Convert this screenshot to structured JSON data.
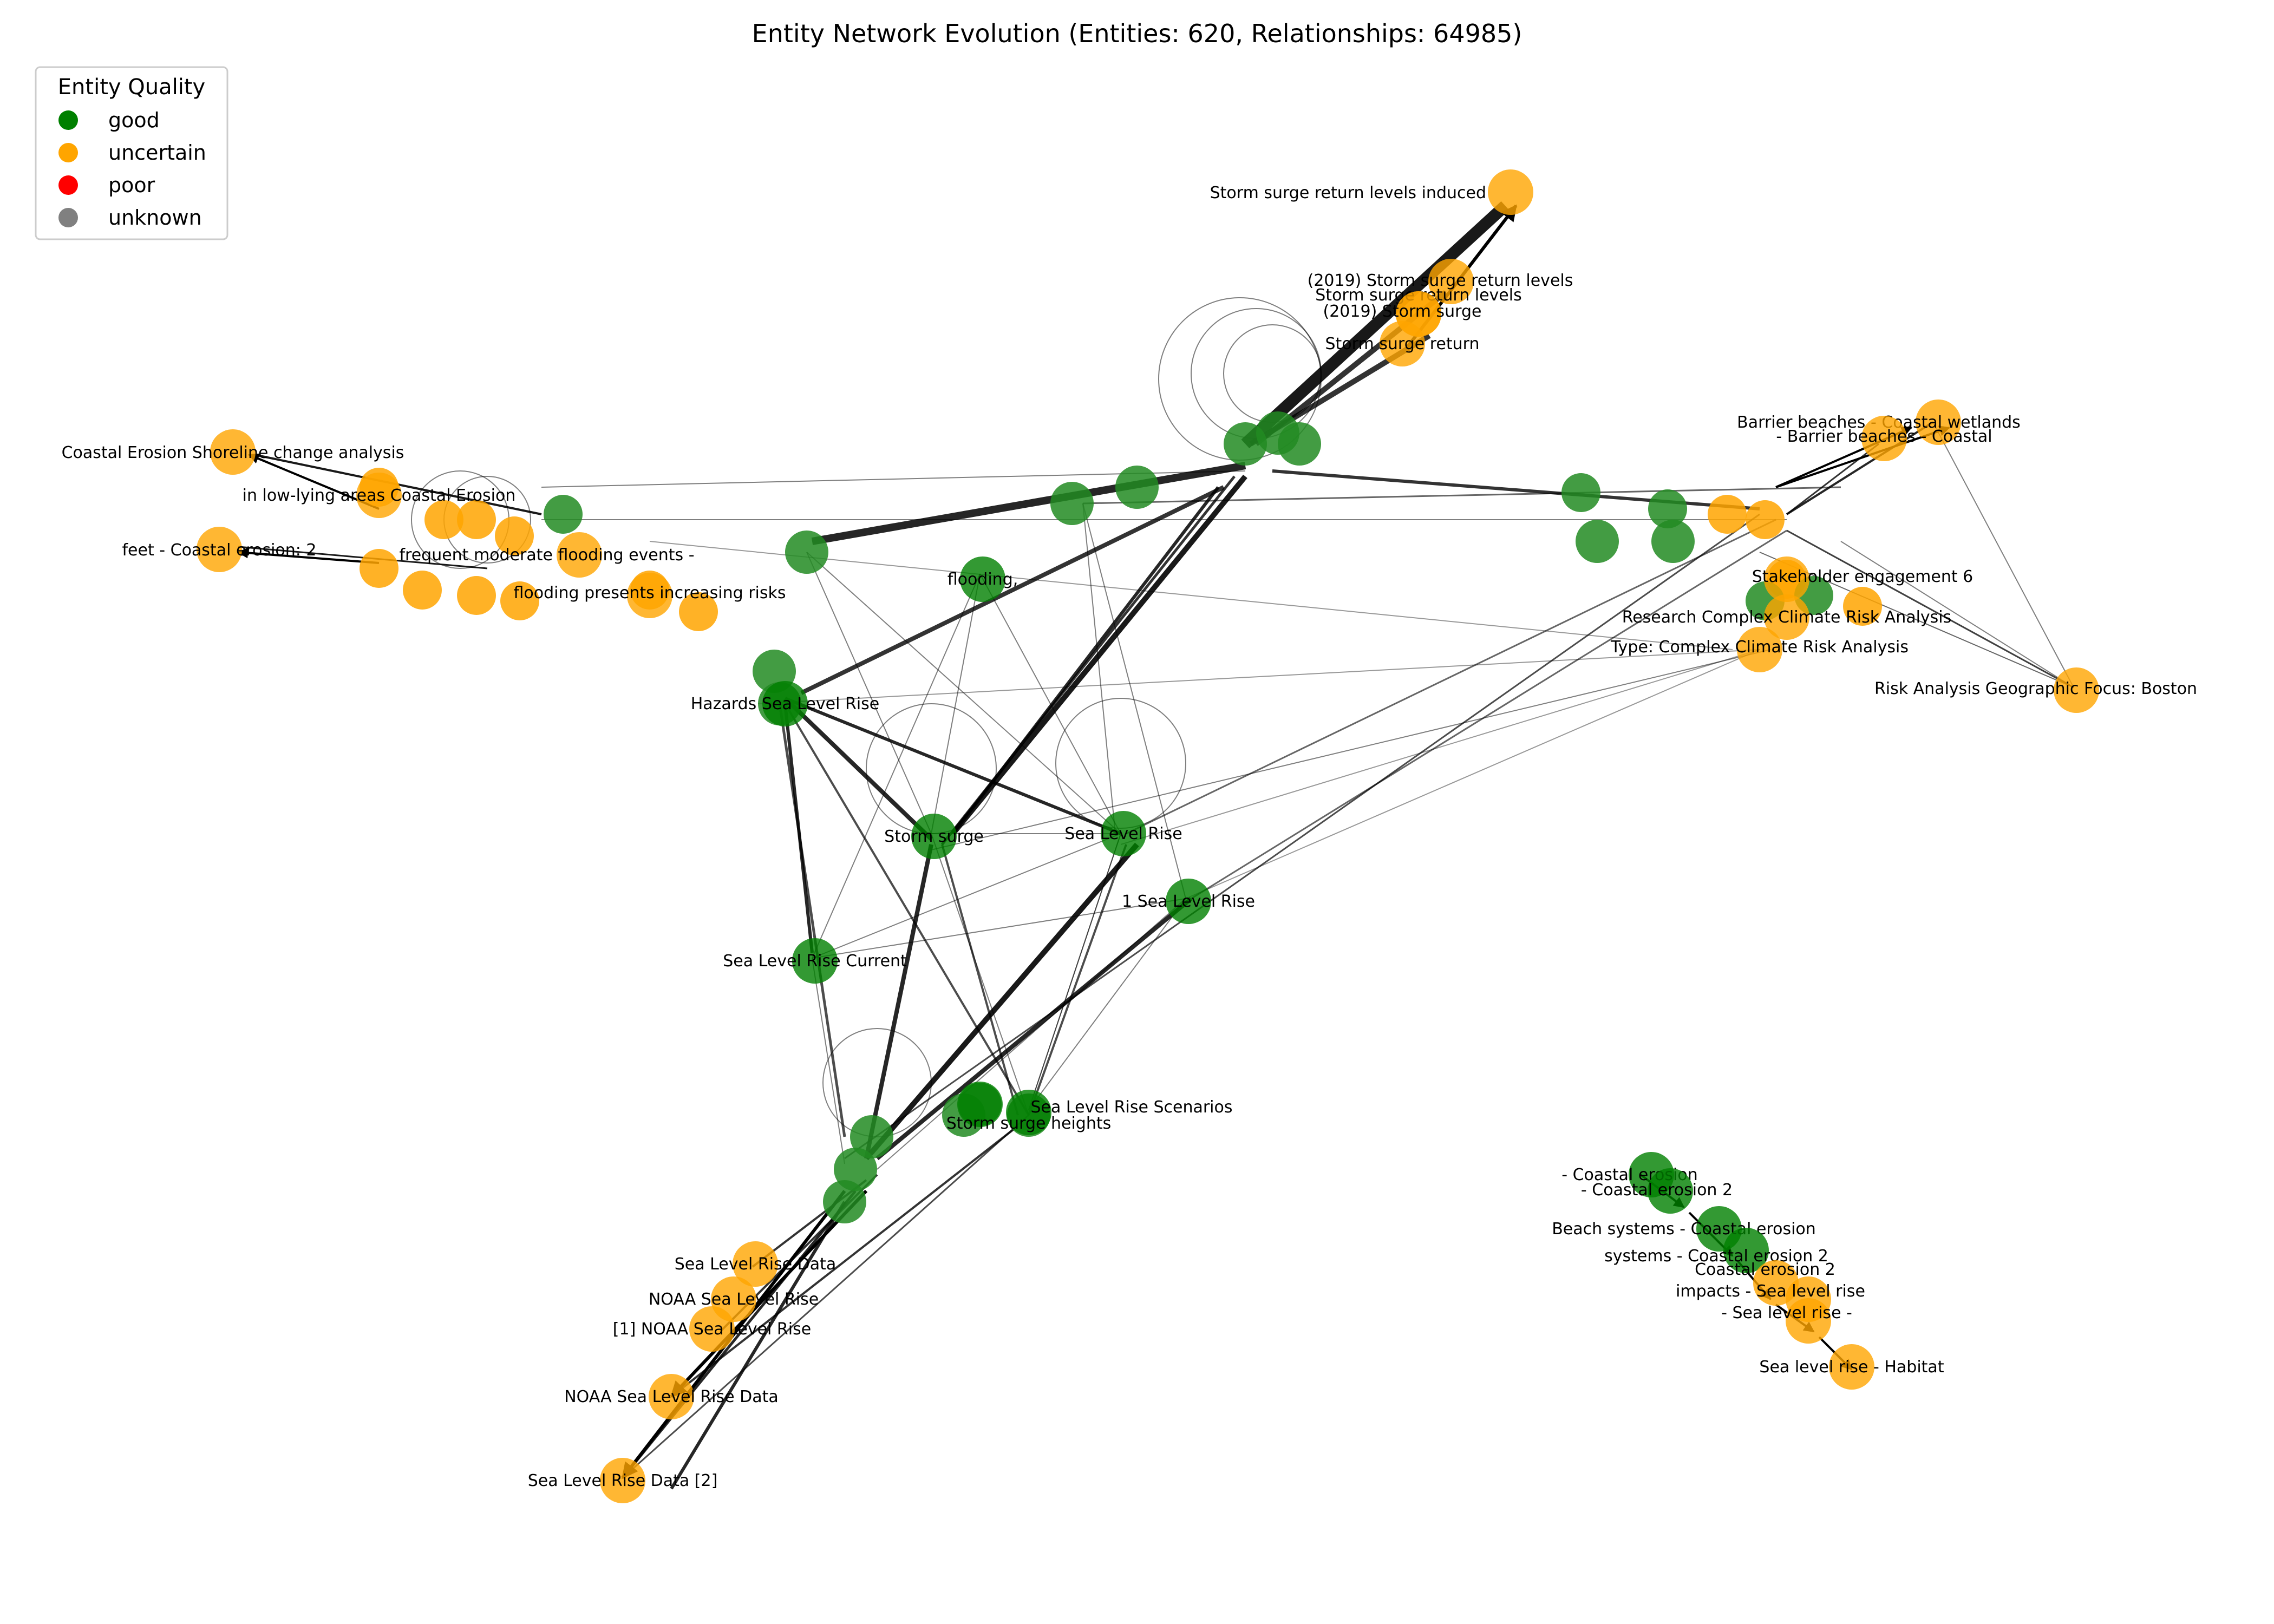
{
  "title": "Entity Network Evolution (Entities: 620, Relationships: 64985)",
  "legend": {
    "title": "Entity Quality",
    "items": [
      {
        "label": "good",
        "color": "#008000"
      },
      {
        "label": "uncertain",
        "color": "#FFA500"
      },
      {
        "label": "poor",
        "color": "#FF0000"
      },
      {
        "label": "unknown",
        "color": "#808080"
      }
    ]
  },
  "nodes": [
    {
      "id": "n1",
      "label": "Storm surge return levels induced",
      "quality": "uncertain"
    },
    {
      "id": "n2",
      "label": "(2019) Storm surge return levels",
      "quality": "uncertain"
    },
    {
      "id": "n3",
      "label": "Storm surge return levels",
      "quality": "uncertain"
    },
    {
      "id": "n4",
      "label": "(2019) Storm surge",
      "quality": "uncertain"
    },
    {
      "id": "n5",
      "label": "Storm surge return",
      "quality": "uncertain"
    },
    {
      "id": "n6",
      "label": "Coastal Erosion Shoreline change analysis",
      "quality": "uncertain"
    },
    {
      "id": "n7",
      "label": "in low-lying areas Coastal Erosion",
      "quality": "uncertain"
    },
    {
      "id": "n8",
      "label": "feet - Coastal erosion: 2",
      "quality": "uncertain"
    },
    {
      "id": "n9",
      "label": "frequent moderate flooding events -",
      "quality": "uncertain"
    },
    {
      "id": "n10",
      "label": "flooding presents increasing risks",
      "quality": "uncertain"
    },
    {
      "id": "n11",
      "label": "flooding,",
      "quality": "good"
    },
    {
      "id": "n12",
      "label": "Hazards Sea Level Rise",
      "quality": "good"
    },
    {
      "id": "n13",
      "label": "Storm surge",
      "quality": "good"
    },
    {
      "id": "n14",
      "label": "Sea Level Rise",
      "quality": "good"
    },
    {
      "id": "n15",
      "label": "1 Sea Level Rise",
      "quality": "good"
    },
    {
      "id": "n16",
      "label": "Sea Level Rise Current",
      "quality": "good"
    },
    {
      "id": "n17",
      "label": "Barrier beaches - Coastal wetlands",
      "quality": "uncertain"
    },
    {
      "id": "n18",
      "label": "- Barrier beaches - Coastal",
      "quality": "uncertain"
    },
    {
      "id": "n19",
      "label": "Stakeholder engagement 6",
      "quality": "uncertain"
    },
    {
      "id": "n20",
      "label": "Research Complex Climate Risk Analysis",
      "quality": "uncertain"
    },
    {
      "id": "n21",
      "label": "Type: Complex Climate Risk Analysis",
      "quality": "uncertain"
    },
    {
      "id": "n22",
      "label": "Risk Analysis Geographic Focus: Boston",
      "quality": "uncertain"
    },
    {
      "id": "n23",
      "label": "Sea Level Rise Scenarios",
      "quality": "good"
    },
    {
      "id": "n24",
      "label": "Storm surge heights",
      "quality": "good"
    },
    {
      "id": "n25",
      "label": "Sea Level Rise Data",
      "quality": "uncertain"
    },
    {
      "id": "n26",
      "label": "NOAA Sea Level Rise",
      "quality": "uncertain"
    },
    {
      "id": "n27",
      "label": "[1] NOAA Sea Level Rise",
      "quality": "uncertain"
    },
    {
      "id": "n28",
      "label": "NOAA Sea Level Rise Data",
      "quality": "uncertain"
    },
    {
      "id": "n29",
      "label": "Sea Level Rise Data [2]",
      "quality": "uncertain"
    },
    {
      "id": "n30",
      "label": "- Coastal erosion",
      "quality": "good"
    },
    {
      "id": "n31",
      "label": "- Coastal erosion 2",
      "quality": "good"
    },
    {
      "id": "n32",
      "label": "Beach systems - Coastal erosion",
      "quality": "good"
    },
    {
      "id": "n33",
      "label": "systems - Coastal erosion 2",
      "quality": "good"
    },
    {
      "id": "n34",
      "label": "Coastal erosion 2",
      "quality": "uncertain"
    },
    {
      "id": "n35",
      "label": "impacts - Sea level rise",
      "quality": "uncertain"
    },
    {
      "id": "n36",
      "label": "- Sea level rise -",
      "quality": "uncertain"
    },
    {
      "id": "n37",
      "label": "Sea level rise - Habitat",
      "quality": "uncertain"
    }
  ]
}
